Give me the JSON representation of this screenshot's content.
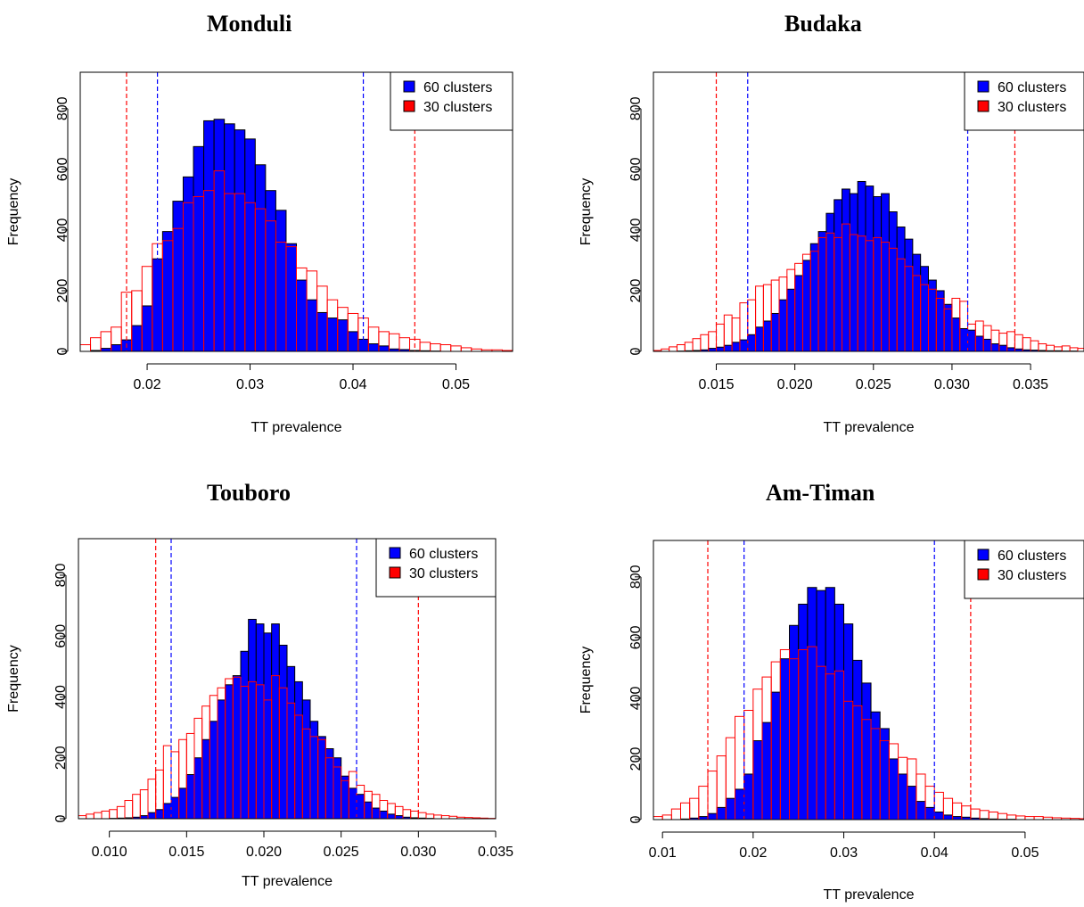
{
  "chart_data": [
    {
      "type": "histogram",
      "title": "Monduli",
      "xlabel": "TT prevalence",
      "ylabel": "Frequency",
      "xlim": [
        0.0135,
        0.0555
      ],
      "ylim": [
        0,
        920
      ],
      "xticks": [
        0.02,
        0.03,
        0.04,
        0.05
      ],
      "xtick_labels": [
        "0.02",
        "0.03",
        "0.04",
        "0.05"
      ],
      "yticks": [
        0,
        200,
        400,
        600,
        800
      ],
      "ytick_labels": [
        "0",
        "200",
        "400",
        "600",
        "800"
      ],
      "bin_start": 0.0135,
      "bin_width": 0.001,
      "legend": {
        "position": "top-right",
        "entries": [
          "60 clusters",
          "30 clusters"
        ]
      },
      "series": [
        {
          "name": "60 clusters",
          "color": "#0000ff",
          "values": [
            0,
            3,
            10,
            22,
            38,
            85,
            150,
            305,
            395,
            495,
            575,
            675,
            760,
            765,
            750,
            730,
            700,
            615,
            530,
            465,
            355,
            235,
            170,
            128,
            110,
            104,
            65,
            40,
            25,
            18,
            8,
            6,
            3,
            2,
            1,
            0,
            0,
            0,
            0,
            0,
            0,
            0
          ]
        },
        {
          "name": "30 clusters",
          "color": "#ff0000",
          "values": [
            22,
            45,
            65,
            80,
            195,
            200,
            280,
            355,
            365,
            405,
            490,
            510,
            530,
            595,
            520,
            520,
            490,
            470,
            430,
            360,
            345,
            275,
            265,
            215,
            170,
            145,
            125,
            110,
            80,
            65,
            58,
            45,
            40,
            30,
            25,
            22,
            18,
            12,
            8,
            5,
            5,
            3
          ]
        }
      ],
      "vlines": [
        {
          "x": 0.018,
          "color": "#ff0000"
        },
        {
          "x": 0.021,
          "color": "#0000ff"
        },
        {
          "x": 0.041,
          "color": "#0000ff"
        },
        {
          "x": 0.046,
          "color": "#ff0000"
        }
      ]
    },
    {
      "type": "histogram",
      "title": "Budaka",
      "xlabel": "TT prevalence",
      "ylabel": "Frequency",
      "xlim": [
        0.011,
        0.0384
      ],
      "ylim": [
        0,
        920
      ],
      "xticks": [
        0.015,
        0.02,
        0.025,
        0.03,
        0.035
      ],
      "xtick_labels": [
        "0.015",
        "0.020",
        "0.025",
        "0.030",
        "0.035"
      ],
      "yticks": [
        0,
        200,
        400,
        600,
        800
      ],
      "ytick_labels": [
        "0",
        "200",
        "400",
        "600",
        "800"
      ],
      "bin_start": 0.011,
      "bin_width": 0.0005,
      "legend": {
        "position": "top-right",
        "entries": [
          "60 clusters",
          "30 clusters"
        ]
      },
      "series": [
        {
          "name": "60 clusters",
          "color": "#0000ff",
          "values": [
            0,
            0,
            0,
            1,
            2,
            3,
            5,
            10,
            14,
            20,
            30,
            38,
            55,
            80,
            100,
            125,
            170,
            205,
            250,
            300,
            355,
            395,
            455,
            500,
            535,
            520,
            560,
            545,
            510,
            520,
            460,
            410,
            370,
            320,
            280,
            235,
            200,
            155,
            110,
            75,
            70,
            50,
            40,
            25,
            20,
            12,
            8,
            5,
            4,
            3,
            2,
            2,
            1,
            1,
            0
          ]
        },
        {
          "name": "30 clusters",
          "color": "#ff0000",
          "values": [
            3,
            8,
            15,
            22,
            30,
            42,
            55,
            65,
            90,
            120,
            110,
            160,
            170,
            215,
            220,
            235,
            245,
            270,
            290,
            320,
            330,
            375,
            390,
            375,
            420,
            385,
            380,
            365,
            375,
            360,
            340,
            305,
            280,
            250,
            220,
            205,
            175,
            140,
            175,
            165,
            90,
            100,
            85,
            70,
            60,
            65,
            55,
            45,
            35,
            25,
            20,
            15,
            18,
            12,
            10
          ]
        }
      ],
      "vlines": [
        {
          "x": 0.015,
          "color": "#ff0000"
        },
        {
          "x": 0.017,
          "color": "#0000ff"
        },
        {
          "x": 0.031,
          "color": "#0000ff"
        },
        {
          "x": 0.034,
          "color": "#ff0000"
        }
      ]
    },
    {
      "type": "histogram",
      "title": "Touboro",
      "xlabel": "TT prevalence",
      "ylabel": "Frequency",
      "xlim": [
        0.008,
        0.035
      ],
      "ylim": [
        0,
        920
      ],
      "xticks": [
        0.01,
        0.015,
        0.02,
        0.025,
        0.03,
        0.035
      ],
      "xtick_labels": [
        "0.010",
        "0.015",
        "0.020",
        "0.025",
        "0.030",
        "0.035"
      ],
      "yticks": [
        0,
        200,
        400,
        600,
        800
      ],
      "ytick_labels": [
        "0",
        "200",
        "400",
        "600",
        "800"
      ],
      "bin_start": 0.008,
      "bin_width": 0.0005,
      "legend": {
        "position": "top-right",
        "entries": [
          "60 clusters",
          "30 clusters"
        ]
      },
      "series": [
        {
          "name": "60 clusters",
          "color": "#0000ff",
          "values": [
            0,
            0,
            0,
            0,
            1,
            2,
            3,
            5,
            10,
            20,
            30,
            50,
            70,
            100,
            145,
            200,
            260,
            320,
            390,
            440,
            470,
            550,
            655,
            640,
            610,
            640,
            570,
            500,
            450,
            390,
            320,
            270,
            230,
            200,
            140,
            100,
            80,
            55,
            35,
            25,
            15,
            10,
            5,
            3,
            2,
            1,
            0,
            0,
            0,
            0,
            0,
            0,
            0,
            0
          ]
        },
        {
          "name": "30 clusters",
          "color": "#ff0000",
          "values": [
            10,
            15,
            20,
            25,
            30,
            40,
            60,
            80,
            95,
            130,
            160,
            240,
            220,
            260,
            280,
            330,
            370,
            405,
            430,
            460,
            465,
            435,
            450,
            440,
            390,
            470,
            430,
            380,
            340,
            295,
            270,
            260,
            200,
            170,
            125,
            155,
            110,
            90,
            80,
            60,
            50,
            40,
            30,
            25,
            20,
            15,
            12,
            10,
            8,
            5,
            4,
            3,
            2,
            1
          ]
        }
      ],
      "vlines": [
        {
          "x": 0.013,
          "color": "#ff0000"
        },
        {
          "x": 0.014,
          "color": "#0000ff"
        },
        {
          "x": 0.026,
          "color": "#0000ff"
        },
        {
          "x": 0.03,
          "color": "#ff0000"
        }
      ]
    },
    {
      "type": "histogram",
      "title": "Am-Timan",
      "xlabel": "TT prevalence",
      "ylabel": "Frequency",
      "xlim": [
        0.009,
        0.0565
      ],
      "ylim": [
        0,
        920
      ],
      "xticks": [
        0.01,
        0.02,
        0.03,
        0.04,
        0.05
      ],
      "xtick_labels": [
        "0.01",
        "0.02",
        "0.03",
        "0.04",
        "0.05"
      ],
      "yticks": [
        0,
        200,
        400,
        600,
        800
      ],
      "ytick_labels": [
        "0",
        "200",
        "400",
        "600",
        "800"
      ],
      "bin_start": 0.009,
      "bin_width": 0.001,
      "legend": {
        "position": "top-right",
        "entries": [
          "60 clusters",
          "30 clusters"
        ]
      },
      "series": [
        {
          "name": "60 clusters",
          "color": "#0000ff",
          "values": [
            0,
            0,
            0,
            2,
            5,
            10,
            20,
            40,
            70,
            100,
            150,
            260,
            320,
            420,
            530,
            640,
            710,
            765,
            755,
            765,
            710,
            645,
            525,
            450,
            355,
            300,
            200,
            150,
            110,
            60,
            40,
            25,
            15,
            10,
            8,
            5,
            3,
            2,
            1,
            1,
            0,
            0,
            0,
            0,
            0,
            0,
            0,
            0
          ]
        },
        {
          "name": "30 clusters",
          "color": "#ff0000",
          "values": [
            10,
            15,
            35,
            55,
            70,
            110,
            160,
            210,
            270,
            340,
            360,
            430,
            470,
            520,
            560,
            530,
            560,
            570,
            505,
            480,
            490,
            390,
            375,
            330,
            300,
            260,
            250,
            205,
            200,
            150,
            110,
            90,
            70,
            55,
            45,
            35,
            30,
            25,
            20,
            15,
            12,
            10,
            10,
            8,
            6,
            5,
            4,
            3
          ]
        }
      ],
      "vlines": [
        {
          "x": 0.015,
          "color": "#ff0000"
        },
        {
          "x": 0.019,
          "color": "#0000ff"
        },
        {
          "x": 0.04,
          "color": "#0000ff"
        },
        {
          "x": 0.044,
          "color": "#ff0000"
        }
      ]
    }
  ]
}
